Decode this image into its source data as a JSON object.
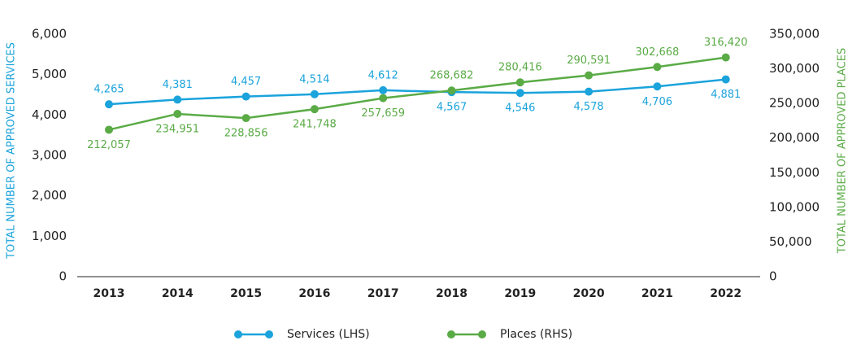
{
  "chart_data": {
    "type": "line",
    "categories": [
      "2013",
      "2014",
      "2015",
      "2016",
      "2017",
      "2018",
      "2019",
      "2020",
      "2021",
      "2022"
    ],
    "series": [
      {
        "name": "Services (LHS)",
        "color": "#1ba3dc",
        "axis": "y",
        "values": [
          4265,
          4381,
          4457,
          4514,
          4612,
          4567,
          4546,
          4578,
          4706,
          4881
        ],
        "value_labels": [
          "4,265",
          "4,381",
          "4,457",
          "4,514",
          "4,612",
          "4,567",
          "4,546",
          "4,578",
          "4,706",
          "4,881"
        ]
      },
      {
        "name": "Places (RHS)",
        "color": "#5aab46",
        "axis": "y2",
        "values": [
          212057,
          234951,
          228856,
          241748,
          257659,
          268682,
          280416,
          290591,
          302668,
          316420
        ],
        "value_labels": [
          "212,057",
          "234,951",
          "228,856",
          "241,748",
          "257,659",
          "268,682",
          "280,416",
          "290,591",
          "302,668",
          "316,420"
        ]
      }
    ],
    "ylabel": "TOTAL NUMBER OF APPROVED SERVICES",
    "y2label": "TOTAL NUMBER OF APPROVED PLACES",
    "ylim": [
      0,
      6000
    ],
    "yticks": [
      0,
      {
        "value": 1000,
        "label": "1,000"
      },
      {
        "value": 2000,
        "label": "2,000"
      },
      {
        "value": 3000,
        "label": "3,000"
      },
      {
        "value": 4000,
        "label": "4,000"
      },
      {
        "value": 5000,
        "label": "5,000"
      },
      {
        "value": 6000,
        "label": "6,000"
      }
    ],
    "y2lim": [
      0,
      350000
    ],
    "y2ticks": [
      0,
      {
        "value": 50000,
        "label": "50,000"
      },
      {
        "value": 100000,
        "label": "100,000"
      },
      {
        "value": 150000,
        "label": "150,000"
      },
      {
        "value": 200000,
        "label": "200,000"
      },
      {
        "value": 250000,
        "label": "250,000"
      },
      {
        "value": 300000,
        "label": "300,000"
      },
      {
        "value": 350000,
        "label": "350,000"
      }
    ],
    "legend": "bottom"
  }
}
